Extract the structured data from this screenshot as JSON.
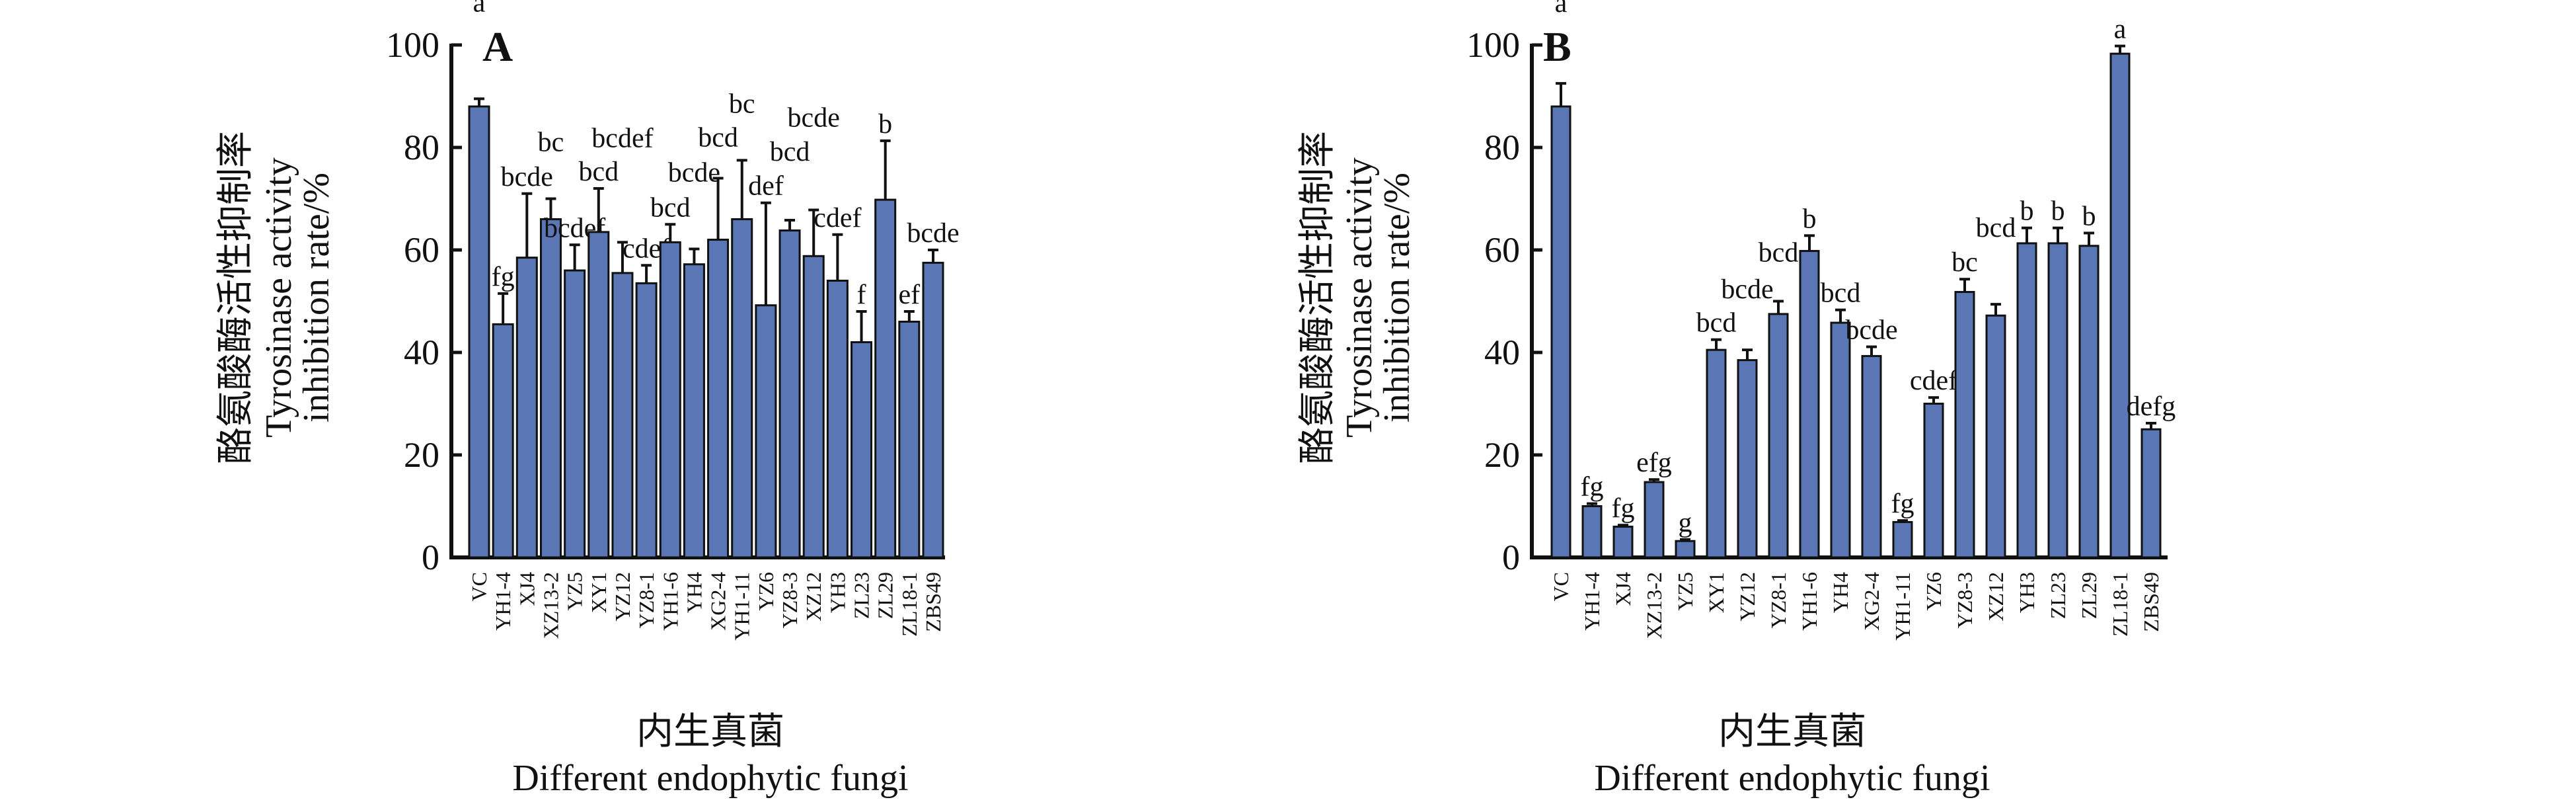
{
  "chart_data": [
    {
      "type": "bar",
      "panel": "A",
      "ylabel_cn": "酪氨酸酶活性抑制率",
      "ylabel": "Tyrosinase activity",
      "ylabel2": "inhibition rate/%",
      "xlabel_cn": "内生真菌",
      "xlabel": "Different endophytic fungi",
      "ylim": [
        0,
        100
      ],
      "yticks": [
        0,
        20,
        40,
        60,
        80,
        100
      ],
      "categories": [
        "VC",
        "YH1-4",
        "XJ4",
        "XZ13-2",
        "YZ5",
        "XY1",
        "YZ12",
        "YZ8-1",
        "YH1-6",
        "YH4",
        "XG2-4",
        "YH1-11",
        "YZ6",
        "YZ8-3",
        "XZ12",
        "YH3",
        "ZL23",
        "ZL29",
        "ZL18-1",
        "ZBS49"
      ],
      "values": [
        88,
        45.5,
        58.5,
        66,
        56,
        63.5,
        55.5,
        53.5,
        61.5,
        57.2,
        62,
        66,
        49.2,
        63.8,
        58.8,
        54,
        42,
        69.8,
        46,
        57.5
      ],
      "errors": [
        1.5,
        6,
        12.5,
        4,
        5,
        8.5,
        6,
        3.5,
        3.5,
        3,
        12,
        11.5,
        20,
        2,
        9,
        9,
        6,
        11.5,
        2,
        2.5
      ],
      "letters": [
        "a",
        "fg",
        "bcde",
        "bc",
        "bcdef",
        "bcd",
        "bcdef",
        "cdef",
        "bcd",
        "bcde",
        "bcd",
        "bc",
        "def",
        "bcd",
        "bcde",
        "cdef",
        "f",
        "b",
        "ef",
        "bcde"
      ],
      "bar_color": "#5b76b5"
    },
    {
      "type": "bar",
      "panel": "B",
      "ylabel_cn": "酪氨酸酶活性抑制率",
      "ylabel": "Tyrosinase activity",
      "ylabel2": "inhibition rate/%",
      "xlabel_cn": "内生真菌",
      "xlabel": "Different endophytic fungi",
      "ylim": [
        0,
        100
      ],
      "yticks": [
        0,
        20,
        40,
        60,
        80,
        100
      ],
      "categories": [
        "VC",
        "YH1-4",
        "XJ4",
        "XZ13-2",
        "YZ5",
        "XY1",
        "YZ12",
        "YZ8-1",
        "YH1-6",
        "YH4",
        "XG2-4",
        "YH1-11",
        "YZ6",
        "YZ8-3",
        "XZ12",
        "YH3",
        "ZL23",
        "ZL29",
        "ZL18-1",
        "ZBS49"
      ],
      "values": [
        88,
        10,
        6,
        14.7,
        3.2,
        40.5,
        38.5,
        47.5,
        59.8,
        45.8,
        39.3,
        6.9,
        30,
        51.8,
        47.2,
        61.3,
        61.3,
        60.8,
        98.3,
        25
      ],
      "errors": [
        4.5,
        0.5,
        0.3,
        0.5,
        0.3,
        2,
        2,
        2.5,
        3,
        2.5,
        1.8,
        0.3,
        1.2,
        2.5,
        2.2,
        3,
        3,
        2.5,
        1.5,
        1.2
      ],
      "letters": [
        "a",
        "fg",
        "fg",
        "efg",
        "g",
        "bcd",
        "bcde",
        "bcd",
        "b",
        "bcd",
        "bcde",
        "fg",
        "cdef",
        "bc",
        "bcd",
        "b",
        "b",
        "b",
        "a",
        "defg"
      ],
      "bar_color": "#5b76b5"
    }
  ]
}
